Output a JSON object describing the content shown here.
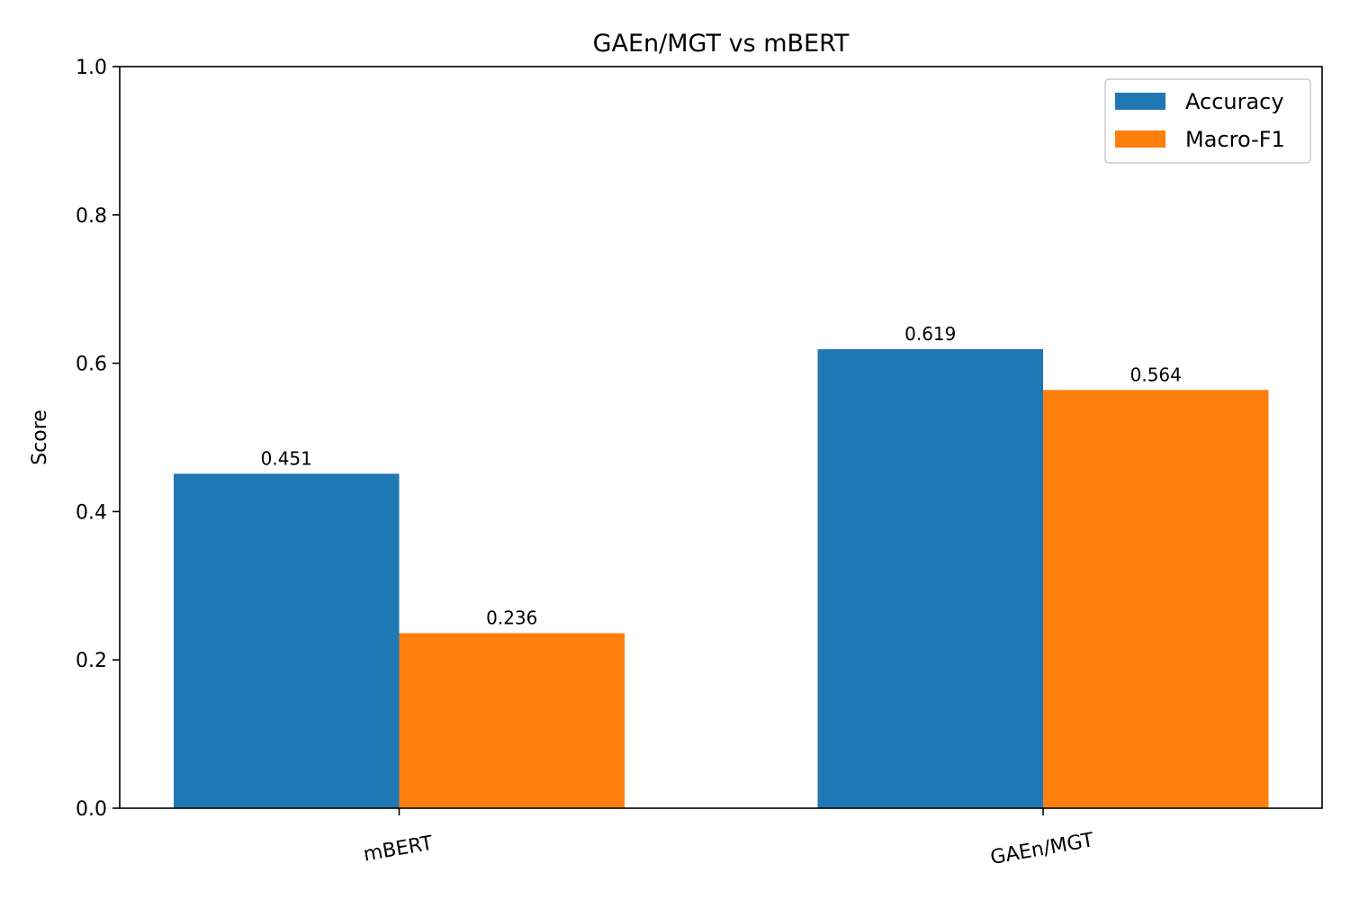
{
  "chart_data": {
    "type": "bar",
    "title": "GAEn/MGT vs mBERT",
    "xlabel": "",
    "ylabel": "Score",
    "ylim": [
      0,
      1.0
    ],
    "yticks": [
      "0.0",
      "0.2",
      "0.4",
      "0.6",
      "0.8",
      "1.0"
    ],
    "categories": [
      "mBERT",
      "GAEn/MGT"
    ],
    "series": [
      {
        "name": "Accuracy",
        "color": "#1f77b4",
        "values": [
          0.451,
          0.619
        ],
        "labels": [
          "0.451",
          "0.619"
        ]
      },
      {
        "name": "Macro-F1",
        "color": "#ff7f0e",
        "values": [
          0.236,
          0.564
        ],
        "labels": [
          "0.236",
          "0.564"
        ]
      }
    ],
    "legend_position": "top-right",
    "grid": false
  }
}
